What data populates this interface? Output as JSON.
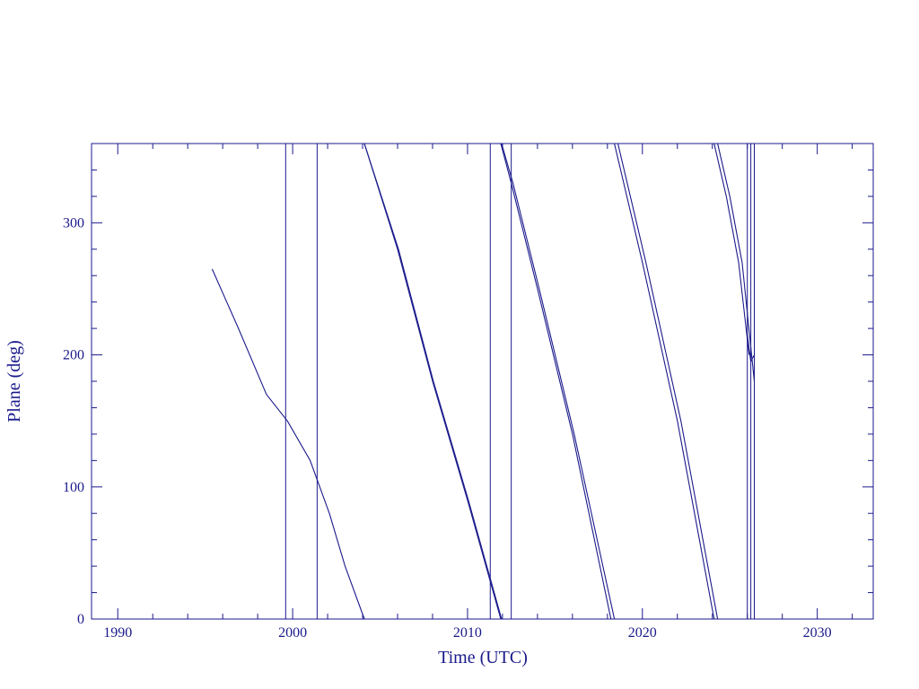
{
  "chart_data": {
    "type": "line",
    "title": "",
    "xlabel": "Time (UTC)",
    "ylabel": "Plane (deg)",
    "xlim": [
      1988.5,
      2033.2
    ],
    "ylim": [
      0,
      360
    ],
    "x_ticks": [
      1990,
      2000,
      2010,
      2020,
      2030
    ],
    "y_ticks": [
      0,
      100,
      200,
      300
    ],
    "x_minor_step": 2,
    "y_minor_step": 20,
    "grid": false,
    "legend": "none",
    "color": "#1a1a8c",
    "vertical_lines": [
      1999.6,
      2001.4,
      2011.3,
      2012.5,
      2026.0,
      2026.2,
      2026.4
    ],
    "series": [
      {
        "x": [
          1995.4,
          1996.9,
          1998.5,
          1999.7,
          2001.0,
          2002.1,
          2003.0,
          2004.1
        ],
        "y": [
          265,
          220,
          170,
          150,
          120,
          80,
          40,
          0
        ]
      },
      {
        "x": [
          2004.1,
          2006.0,
          2008.0,
          2010.0,
          2011.9
        ],
        "y": [
          360,
          280,
          180,
          90,
          0
        ]
      },
      {
        "x": [
          2004.1,
          2006.05,
          2008.05,
          2010.05,
          2011.95
        ],
        "y": [
          360,
          280,
          180,
          90,
          0
        ]
      },
      {
        "x": [
          2011.9,
          2012.5,
          2014.0,
          2016.0,
          2018.2
        ],
        "y": [
          360,
          330,
          250,
          140,
          0
        ]
      },
      {
        "x": [
          2011.95,
          2012.6,
          2014.1,
          2016.1,
          2018.4
        ],
        "y": [
          360,
          330,
          250,
          140,
          0
        ]
      },
      {
        "x": [
          2018.4,
          2020.0,
          2022.0,
          2024.1
        ],
        "y": [
          360,
          270,
          150,
          0
        ]
      },
      {
        "x": [
          2018.6,
          2020.2,
          2022.2,
          2024.3
        ],
        "y": [
          360,
          270,
          150,
          0
        ]
      },
      {
        "x": [
          2024.1,
          2024.8,
          2025.5,
          2026.1
        ],
        "y": [
          360,
          320,
          270,
          200
        ]
      },
      {
        "x": [
          2024.3,
          2025.0,
          2025.7,
          2026.4
        ],
        "y": [
          360,
          320,
          270,
          180
        ]
      },
      {
        "x": [
          2026.0,
          2026.2,
          2026.4
        ],
        "y": [
          215,
          195,
          200
        ]
      }
    ]
  }
}
